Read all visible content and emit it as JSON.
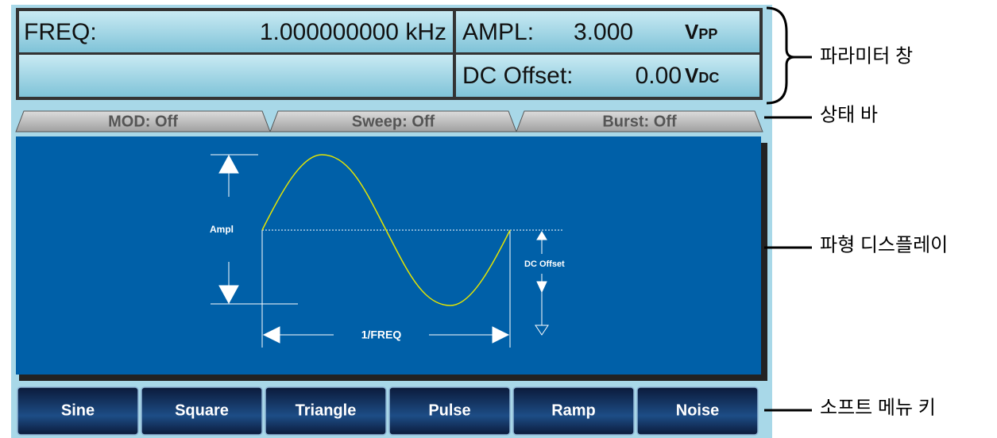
{
  "parameter_window": {
    "freq_label": "FREQ:",
    "freq_value": "1.000000000 kHz",
    "ampl_label": "AMPL:",
    "ampl_value": "3.000",
    "ampl_unit": "Vpp",
    "dc_label": "DC Offset:",
    "dc_value": "0.00",
    "dc_unit": "Vdc"
  },
  "status_bar": [
    "MOD: Off",
    "Sweep: Off",
    "Burst: Off"
  ],
  "waveform": {
    "ampl_label": "Ampl",
    "dc_offset_label": "DC Offset",
    "period_label": "1/FREQ"
  },
  "soft_menu": [
    "Sine",
    "Square",
    "Triangle",
    "Pulse",
    "Ramp",
    "Noise"
  ],
  "annotations": [
    "파라미터 창",
    "상태 바",
    "파형 디스플레이",
    "소프트 메뉴 키"
  ]
}
